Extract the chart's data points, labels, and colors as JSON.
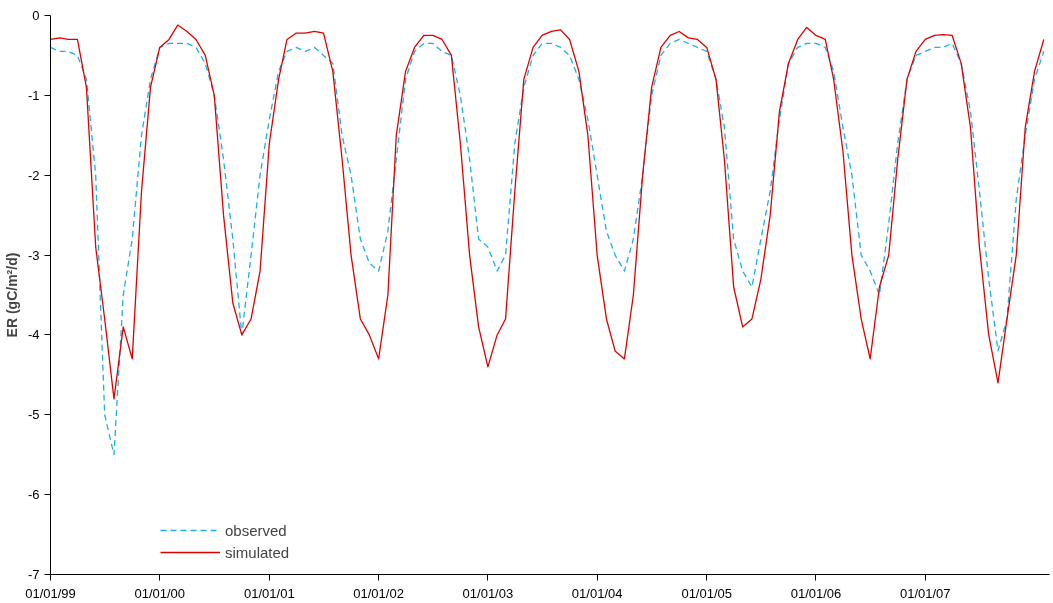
{
  "chart_data": {
    "type": "line",
    "ylabel": "ER (gC/m²/d)",
    "x": [
      "1999-01",
      "1999-02",
      "1999-03",
      "1999-04",
      "1999-05",
      "1999-06",
      "1999-07",
      "1999-08",
      "1999-09",
      "1999-10",
      "1999-11",
      "1999-12",
      "2000-01",
      "2000-02",
      "2000-03",
      "2000-04",
      "2000-05",
      "2000-06",
      "2000-07",
      "2000-08",
      "2000-09",
      "2000-10",
      "2000-11",
      "2000-12",
      "2001-01",
      "2001-02",
      "2001-03",
      "2001-04",
      "2001-05",
      "2001-06",
      "2001-07",
      "2001-08",
      "2001-09",
      "2001-10",
      "2001-11",
      "2001-12",
      "2002-01",
      "2002-02",
      "2002-03",
      "2002-04",
      "2002-05",
      "2002-06",
      "2002-07",
      "2002-08",
      "2002-09",
      "2002-10",
      "2002-11",
      "2002-12",
      "2003-01",
      "2003-02",
      "2003-03",
      "2003-04",
      "2003-05",
      "2003-06",
      "2003-07",
      "2003-08",
      "2003-09",
      "2003-10",
      "2003-11",
      "2003-12",
      "2004-01",
      "2004-02",
      "2004-03",
      "2004-04",
      "2004-05",
      "2004-06",
      "2004-07",
      "2004-08",
      "2004-09",
      "2004-10",
      "2004-11",
      "2004-12",
      "2005-01",
      "2005-02",
      "2005-03",
      "2005-04",
      "2005-05",
      "2005-06",
      "2005-07",
      "2005-08",
      "2005-09",
      "2005-10",
      "2005-11",
      "2005-12",
      "2006-01",
      "2006-02",
      "2006-03",
      "2006-04",
      "2006-05",
      "2006-06",
      "2006-07",
      "2006-08",
      "2006-09",
      "2006-10",
      "2006-11",
      "2006-12",
      "2007-01",
      "2007-02",
      "2007-03",
      "2007-04",
      "2007-05",
      "2007-06",
      "2007-07",
      "2007-08",
      "2007-09",
      "2007-10",
      "2007-11",
      "2007-12",
      "2008-01",
      "2008-02"
    ],
    "series": [
      {
        "name": "observed",
        "color": "#1ab0e8",
        "line_style": "dashed",
        "values": [
          -0.4,
          -0.45,
          -0.45,
          -0.5,
          -0.8,
          -2.0,
          -5.0,
          -5.5,
          -3.5,
          -2.8,
          -1.5,
          -0.8,
          -0.4,
          -0.35,
          -0.35,
          -0.35,
          -0.4,
          -0.6,
          -1.0,
          -1.8,
          -2.8,
          -4.0,
          -3.0,
          -2.0,
          -1.3,
          -0.7,
          -0.45,
          -0.4,
          -0.45,
          -0.4,
          -0.5,
          -0.6,
          -1.5,
          -2.0,
          -2.8,
          -3.1,
          -3.2,
          -2.7,
          -1.8,
          -0.8,
          -0.45,
          -0.35,
          -0.35,
          -0.45,
          -0.5,
          -1.0,
          -1.8,
          -2.8,
          -2.9,
          -3.2,
          -3.0,
          -1.6,
          -0.9,
          -0.5,
          -0.35,
          -0.35,
          -0.4,
          -0.5,
          -0.8,
          -1.3,
          -2.0,
          -2.7,
          -3.0,
          -3.2,
          -2.8,
          -2.0,
          -1.0,
          -0.5,
          -0.35,
          -0.3,
          -0.35,
          -0.4,
          -0.45,
          -0.8,
          -1.4,
          -2.8,
          -3.2,
          -3.4,
          -2.8,
          -2.2,
          -1.3,
          -0.6,
          -0.4,
          -0.35,
          -0.35,
          -0.4,
          -0.7,
          -1.4,
          -2.0,
          -3.0,
          -3.2,
          -3.5,
          -2.6,
          -1.6,
          -0.8,
          -0.5,
          -0.45,
          -0.4,
          -0.4,
          -0.35,
          -0.6,
          -1.2,
          -2.2,
          -3.3,
          -4.2,
          -3.8,
          -2.3,
          -1.5,
          -0.8,
          -0.45
        ]
      },
      {
        "name": "simulated",
        "color": "#e00000",
        "line_style": "solid",
        "values": [
          -0.3,
          -0.28,
          -0.3,
          -0.3,
          -0.9,
          -2.9,
          -3.8,
          -4.8,
          -3.9,
          -4.3,
          -2.2,
          -0.9,
          -0.4,
          -0.3,
          -0.12,
          -0.2,
          -0.3,
          -0.5,
          -1.0,
          -2.5,
          -3.6,
          -4.0,
          -3.8,
          -3.2,
          -1.6,
          -0.8,
          -0.3,
          -0.22,
          -0.22,
          -0.2,
          -0.22,
          -0.7,
          -1.8,
          -3.0,
          -3.8,
          -4.0,
          -4.3,
          -3.5,
          -1.5,
          -0.7,
          -0.4,
          -0.25,
          -0.25,
          -0.3,
          -0.5,
          -1.6,
          -3.0,
          -3.9,
          -4.4,
          -4.0,
          -3.8,
          -2.2,
          -0.8,
          -0.4,
          -0.25,
          -0.2,
          -0.18,
          -0.3,
          -0.7,
          -1.5,
          -3.0,
          -3.8,
          -4.2,
          -4.3,
          -3.5,
          -2.0,
          -0.9,
          -0.4,
          -0.25,
          -0.2,
          -0.28,
          -0.3,
          -0.4,
          -0.8,
          -1.8,
          -3.4,
          -3.9,
          -3.8,
          -3.3,
          -2.5,
          -1.2,
          -0.6,
          -0.3,
          -0.15,
          -0.25,
          -0.3,
          -0.8,
          -1.7,
          -3.0,
          -3.8,
          -4.3,
          -3.4,
          -3.0,
          -1.8,
          -0.8,
          -0.45,
          -0.3,
          -0.25,
          -0.24,
          -0.25,
          -0.6,
          -1.4,
          -2.9,
          -4.0,
          -4.6,
          -3.8,
          -3.0,
          -1.4,
          -0.7,
          -0.3
        ]
      }
    ],
    "xlim": [
      "1999-01-01",
      "2008-02-20"
    ],
    "xticks": [
      {
        "value": "1999-01-01",
        "label": "01/01/99"
      },
      {
        "value": "2000-01-01",
        "label": "01/01/00"
      },
      {
        "value": "2001-01-01",
        "label": "01/01/01"
      },
      {
        "value": "2002-01-01",
        "label": "01/01/02"
      },
      {
        "value": "2003-01-01",
        "label": "01/01/03"
      },
      {
        "value": "2004-01-01",
        "label": "01/01/04"
      },
      {
        "value": "2005-01-01",
        "label": "01/01/05"
      },
      {
        "value": "2006-01-01",
        "label": "01/01/06"
      },
      {
        "value": "2007-01-01",
        "label": "01/01/07"
      }
    ],
    "ylim": [
      -7,
      0
    ],
    "yticks": [
      -7,
      -6,
      -5,
      -4,
      -3,
      -2,
      -1,
      0
    ],
    "grid": false,
    "legend": "bottom left",
    "marker": "none"
  }
}
